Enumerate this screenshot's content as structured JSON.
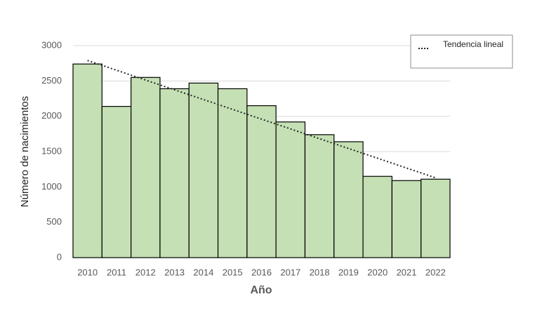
{
  "chart_data": {
    "type": "bar",
    "x_label": "Año",
    "y_label": "Número de nacimientos",
    "categories": [
      "2010",
      "2011",
      "2012",
      "2013",
      "2014",
      "2015",
      "2016",
      "2017",
      "2018",
      "2019",
      "2020",
      "2021",
      "2022"
    ],
    "values": [
      2740,
      2140,
      2550,
      2390,
      2470,
      2390,
      2150,
      1920,
      1740,
      1640,
      1150,
      1090,
      1110
    ],
    "color": "#c5e0b4",
    "trend": {
      "name": "Tendencia lineal",
      "values": [
        2790,
        2652,
        2513,
        2375,
        2237,
        2098,
        1960,
        1822,
        1683,
        1545,
        1407,
        1268,
        1130
      ]
    },
    "ylim": [
      0,
      3000
    ],
    "yticks": [
      0,
      500,
      1000,
      1500,
      2000,
      2500,
      3000
    ],
    "grid": true,
    "legend": "top-right"
  }
}
